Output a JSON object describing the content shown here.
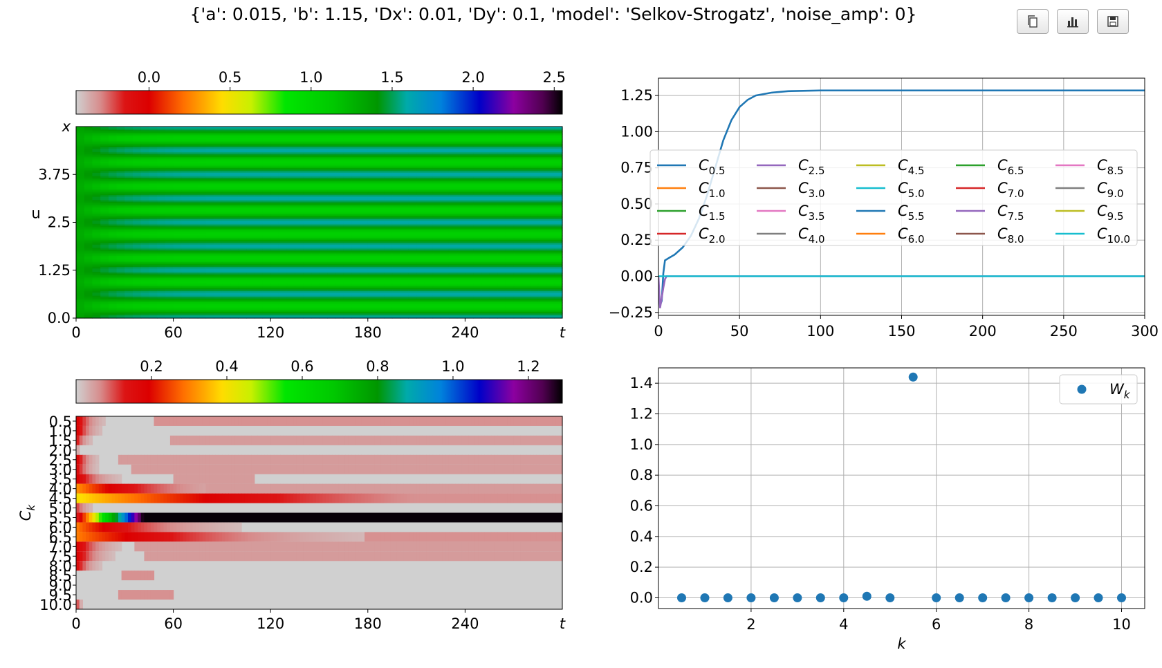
{
  "title": "{'a': 0.015, 'b': 1.15, 'Dx': 0.01, 'Dy': 0.1, 'model': 'Selkov-Strogatz', 'noise_amp': 0}",
  "toolbar": [
    {
      "name": "copy-button",
      "icon": "copy-icon"
    },
    {
      "name": "chart-button",
      "icon": "bar-chart-icon"
    },
    {
      "name": "save-button",
      "icon": "save-icon"
    }
  ],
  "colors": {
    "series_blue": "#1f77b4",
    "series_cyan": "#17becf",
    "series_purple": "#9467bd"
  },
  "chart_data": [
    {
      "id": "u-heatmap",
      "type": "heatmap",
      "ylabel": "u",
      "yaxis_top_label": "x",
      "xaxis_end_label": "t",
      "x_ticks": [
        "0",
        "60",
        "120",
        "180",
        "240"
      ],
      "y_ticks": [
        "0.0",
        "1.25",
        "2.5",
        "3.75"
      ],
      "xlim": [
        0,
        300
      ],
      "ylim": [
        0,
        5
      ],
      "stripe_period": 0.625,
      "colorbar": {
        "ticks": [
          "0.0",
          "0.5",
          "1.0",
          "1.5",
          "2.0",
          "2.5"
        ],
        "range": [
          -0.45,
          2.55
        ]
      }
    },
    {
      "id": "ck-timeseries",
      "type": "line",
      "x_ticks": [
        "0",
        "50",
        "100",
        "150",
        "200",
        "250",
        "300"
      ],
      "y_ticks": [
        "−0.25",
        "0.00",
        "0.25",
        "0.50",
        "0.75",
        "1.00",
        "1.25"
      ],
      "xlim": [
        0,
        300
      ],
      "ylim": [
        -0.27,
        1.37
      ],
      "grid": true,
      "legend_position": "center",
      "legend": [
        {
          "base": "C",
          "sub": "0.5",
          "color": "#1f77b4"
        },
        {
          "base": "C",
          "sub": "1.0",
          "color": "#ff7f0e"
        },
        {
          "base": "C",
          "sub": "1.5",
          "color": "#2ca02c"
        },
        {
          "base": "C",
          "sub": "2.0",
          "color": "#d62728"
        },
        {
          "base": "C",
          "sub": "2.5",
          "color": "#9467bd"
        },
        {
          "base": "C",
          "sub": "3.0",
          "color": "#8c564b"
        },
        {
          "base": "C",
          "sub": "3.5",
          "color": "#e377c2"
        },
        {
          "base": "C",
          "sub": "4.0",
          "color": "#7f7f7f"
        },
        {
          "base": "C",
          "sub": "4.5",
          "color": "#bcbd22"
        },
        {
          "base": "C",
          "sub": "5.0",
          "color": "#17becf"
        },
        {
          "base": "C",
          "sub": "5.5",
          "color": "#1f77b4"
        },
        {
          "base": "C",
          "sub": "6.0",
          "color": "#ff7f0e"
        },
        {
          "base": "C",
          "sub": "6.5",
          "color": "#2ca02c"
        },
        {
          "base": "C",
          "sub": "7.0",
          "color": "#d62728"
        },
        {
          "base": "C",
          "sub": "7.5",
          "color": "#9467bd"
        },
        {
          "base": "C",
          "sub": "8.0",
          "color": "#8c564b"
        },
        {
          "base": "C",
          "sub": "8.5",
          "color": "#e377c2"
        },
        {
          "base": "C",
          "sub": "9.0",
          "color": "#7f7f7f"
        },
        {
          "base": "C",
          "sub": "9.5",
          "color": "#bcbd22"
        },
        {
          "base": "C",
          "sub": "10.0",
          "color": "#17becf"
        }
      ],
      "series": [
        {
          "key": "C5.5",
          "color": "#1f77b4",
          "x": [
            0,
            1,
            2,
            3,
            4,
            7,
            10,
            15,
            20,
            25,
            30,
            35,
            40,
            45,
            50,
            55,
            60,
            70,
            80,
            100,
            150,
            200,
            300
          ],
          "y": [
            -0.05,
            -0.2,
            -0.17,
            0.02,
            0.11,
            0.13,
            0.15,
            0.2,
            0.28,
            0.4,
            0.56,
            0.75,
            0.94,
            1.08,
            1.17,
            1.22,
            1.25,
            1.27,
            1.28,
            1.285,
            1.285,
            1.285,
            1.285
          ]
        },
        {
          "key": "C2.5",
          "color": "#9467bd",
          "x": [
            0,
            1,
            2,
            3,
            4,
            5,
            300
          ],
          "y": [
            0,
            -0.22,
            -0.15,
            -0.08,
            -0.02,
            0,
            0
          ]
        },
        {
          "key": "others",
          "color": "#17becf",
          "x": [
            0,
            300
          ],
          "y": [
            0,
            0
          ]
        }
      ]
    },
    {
      "id": "ck-heatmap",
      "type": "heatmap",
      "ylabel": "Ck",
      "xaxis_end_label": "t",
      "x_ticks": [
        "0",
        "60",
        "120",
        "180",
        "240"
      ],
      "y_ticks": [
        "0.5",
        "1.0",
        "1.5",
        "2.0",
        "2.5",
        "3.0",
        "3.5",
        "4.0",
        "4.5",
        "5.0",
        "5.5",
        "6.0",
        "6.5",
        "7.0",
        "7.5",
        "8.0",
        "8.5",
        "9.0",
        "9.5",
        "10.0"
      ],
      "xlim": [
        0,
        300
      ],
      "colorbar": {
        "ticks": [
          "0.2",
          "0.4",
          "0.6",
          "0.8",
          "1.0",
          "1.2"
        ],
        "range": [
          0,
          1.29
        ]
      },
      "rows": [
        {
          "k": 0.5,
          "peak": 0.2,
          "decay": 8,
          "tail": 0.06,
          "tail_start": 48,
          "tail_end": 300
        },
        {
          "k": 1.0,
          "peak": 0.2,
          "decay": 7,
          "tail": 0,
          "tail_start": 0,
          "tail_end": 0
        },
        {
          "k": 1.5,
          "peak": 0.15,
          "decay": 5,
          "tail": 0.05,
          "tail_start": 58,
          "tail_end": 300
        },
        {
          "k": 2.0,
          "peak": 0.05,
          "decay": 3,
          "tail": 0,
          "tail_start": 0,
          "tail_end": 0
        },
        {
          "k": 2.5,
          "peak": 0.2,
          "decay": 6,
          "tail": 0.05,
          "tail_start": 26,
          "tail_end": 300
        },
        {
          "k": 3.0,
          "peak": 0.18,
          "decay": 6,
          "tail": 0.05,
          "tail_start": 34,
          "tail_end": 300
        },
        {
          "k": 3.5,
          "peak": 0.2,
          "decay": 12,
          "tail": 0.05,
          "tail_start": 60,
          "tail_end": 110
        },
        {
          "k": 4.0,
          "peak": 0.32,
          "decay": 40,
          "tail": 0.05,
          "tail_start": 80,
          "tail_end": 300
        },
        {
          "k": 4.5,
          "peak": 0.4,
          "decay": 110,
          "tail": 0.06,
          "tail_start": 210,
          "tail_end": 300
        },
        {
          "k": 5.0,
          "peak": 0.12,
          "decay": 6,
          "tail": 0,
          "tail_start": 0,
          "tail_end": 0
        },
        {
          "k": 5.5,
          "peak": 1.285,
          "decay": 0,
          "tail": 0,
          "tail_start": 0,
          "tail_end": 0
        },
        {
          "k": 6.0,
          "peak": 0.3,
          "decay": 38,
          "tail": 0,
          "tail_start": 0,
          "tail_end": 0
        },
        {
          "k": 6.5,
          "peak": 0.3,
          "decay": 70,
          "tail": 0.06,
          "tail_start": 178,
          "tail_end": 300
        },
        {
          "k": 7.0,
          "peak": 0.2,
          "decay": 12,
          "tail": 0.05,
          "tail_start": 36,
          "tail_end": 300
        },
        {
          "k": 7.5,
          "peak": 0.2,
          "decay": 10,
          "tail": 0.05,
          "tail_start": 43,
          "tail_end": 300
        },
        {
          "k": 8.0,
          "peak": 0.18,
          "decay": 7,
          "tail": 0,
          "tail_start": 0,
          "tail_end": 0
        },
        {
          "k": 8.5,
          "peak": 0.02,
          "decay": 2,
          "tail": 0.06,
          "tail_start": 29,
          "tail_end": 48
        },
        {
          "k": 9.0,
          "peak": 0.02,
          "decay": 2,
          "tail": 0,
          "tail_start": 0,
          "tail_end": 0
        },
        {
          "k": 9.5,
          "peak": 0.02,
          "decay": 2,
          "tail": 0.06,
          "tail_start": 27,
          "tail_end": 60
        },
        {
          "k": 10.0,
          "peak": 0.15,
          "decay": 2,
          "tail": 0,
          "tail_start": 0,
          "tail_end": 0
        }
      ]
    },
    {
      "id": "wk-scatter",
      "type": "scatter",
      "xlabel": "k",
      "x_ticks": [
        "2",
        "4",
        "6",
        "8",
        "10"
      ],
      "y_ticks": [
        "0.0",
        "0.2",
        "0.4",
        "0.6",
        "0.8",
        "1.0",
        "1.2",
        "1.4"
      ],
      "xlim": [
        0.0,
        10.5
      ],
      "ylim": [
        -0.07,
        1.5
      ],
      "grid": true,
      "legend_position": "upper right",
      "legend": [
        {
          "base": "W",
          "sub": "k",
          "color": "#1f77b4"
        }
      ],
      "x": [
        0.5,
        1.0,
        1.5,
        2.0,
        2.5,
        3.0,
        3.5,
        4.0,
        4.5,
        5.0,
        5.5,
        6.0,
        6.5,
        7.0,
        7.5,
        8.0,
        8.5,
        9.0,
        9.5,
        10.0
      ],
      "y": [
        0.0,
        0.0,
        0.0,
        0.0,
        0.0,
        0.0,
        0.0,
        0.0,
        0.01,
        0.0,
        1.44,
        0.0,
        0.0,
        0.0,
        0.0,
        0.0,
        0.0,
        0.0,
        0.0,
        0.0
      ]
    }
  ]
}
